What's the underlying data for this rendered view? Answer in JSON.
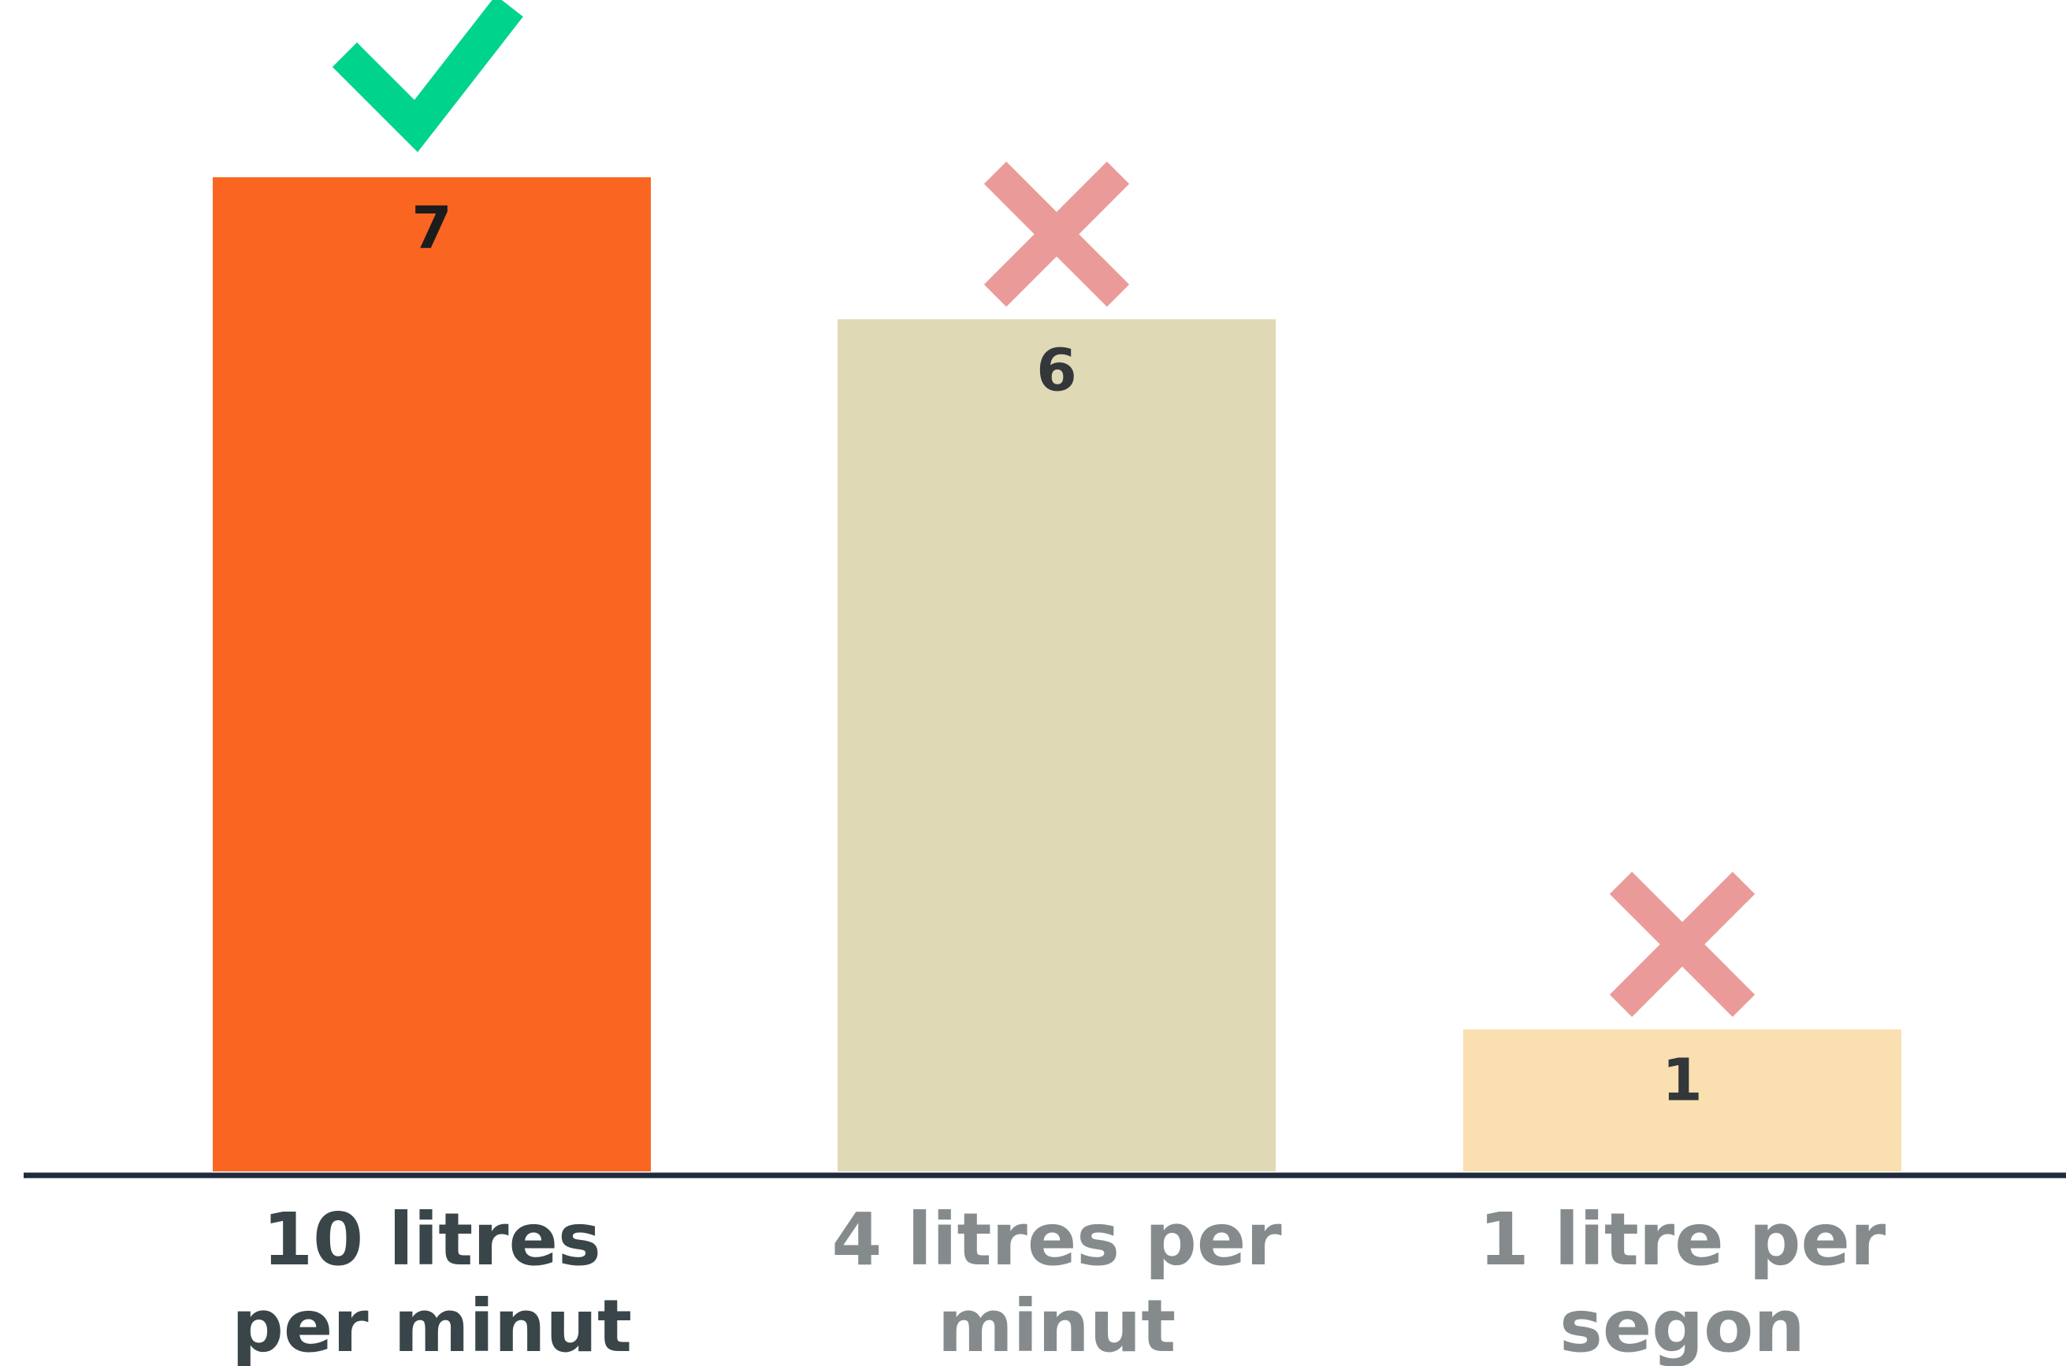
{
  "chart_data": {
    "type": "bar",
    "categories": [
      [
        "10 litres",
        "per minut"
      ],
      [
        "4 litres per",
        "minut"
      ],
      [
        "1 litre per",
        "segon"
      ]
    ],
    "values": [
      7,
      6,
      1
    ],
    "ylim": [
      0,
      7
    ],
    "grid": false,
    "title": "",
    "xlabel": "",
    "ylabel": "",
    "bar_colors": [
      "#fa6621",
      "#e0d9b5",
      "#fadfb0"
    ],
    "value_label_colors": [
      "#1c1c1c",
      "#33373a",
      "#33373a"
    ],
    "category_label_colors": [
      "#394549",
      "#858b8d",
      "#858b8d"
    ],
    "markers": [
      "check-icon",
      "cross-icon",
      "cross-icon"
    ],
    "marker_colors": {
      "check-icon": "#00d48c",
      "cross-icon": "#eb9a9a"
    },
    "axis_color": "#1f2a3d"
  }
}
